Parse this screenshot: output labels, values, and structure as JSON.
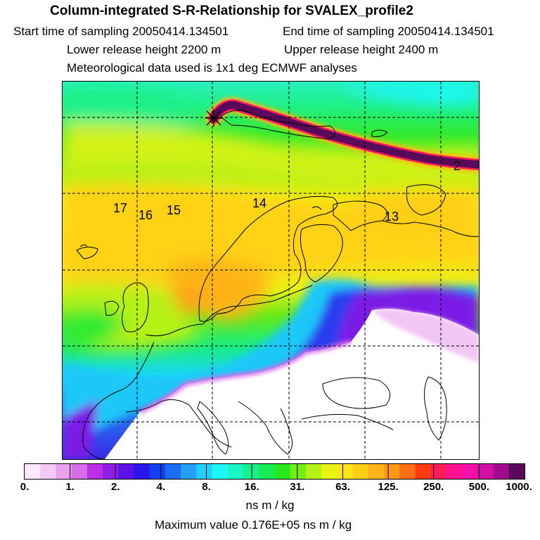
{
  "header": {
    "title": "Column-integrated S-R-Relationship for SVALEX_profile2",
    "start_time": "Start time of sampling 20050414.134501",
    "end_time": "End time of sampling 20050414.134501",
    "lower_height": "Lower release height 2200 m",
    "upper_height": "Upper release height 2400 m",
    "met_data": "Meteorological data used is 1x1 deg ECMWF analyses"
  },
  "map": {
    "day_labels": [
      "17",
      "16",
      "15",
      "14",
      "13",
      "2"
    ]
  },
  "colorbar": {
    "ticks": [
      "0.",
      "1.",
      "2.",
      "4.",
      "8.",
      "16.",
      "31.",
      "63.",
      "125.",
      "250.",
      "500.",
      "1000."
    ],
    "colors": [
      "#fde8fd",
      "#f5c8f5",
      "#eaa2ef",
      "#d76de9",
      "#bd2fe6",
      "#8f1fe6",
      "#5a12e6",
      "#2a16ea",
      "#1540f0",
      "#1a6ef4",
      "#22a0f8",
      "#22d0fb",
      "#1ef7f7",
      "#19f5c5",
      "#18f08c",
      "#18ec55",
      "#26e81d",
      "#74ec16",
      "#b6f115",
      "#e7f414",
      "#ffe619",
      "#ffcf18",
      "#ffb418",
      "#ff9716",
      "#ff6f13",
      "#ff3b11",
      "#ff1c58",
      "#ff108c",
      "#f50fa8",
      "#d20fa5",
      "#a00c8c",
      "#5a0a5a"
    ],
    "unit": "ns m / kg"
  },
  "footer": {
    "max_value": "Maximum value  0.176E+05 ns m / kg"
  }
}
